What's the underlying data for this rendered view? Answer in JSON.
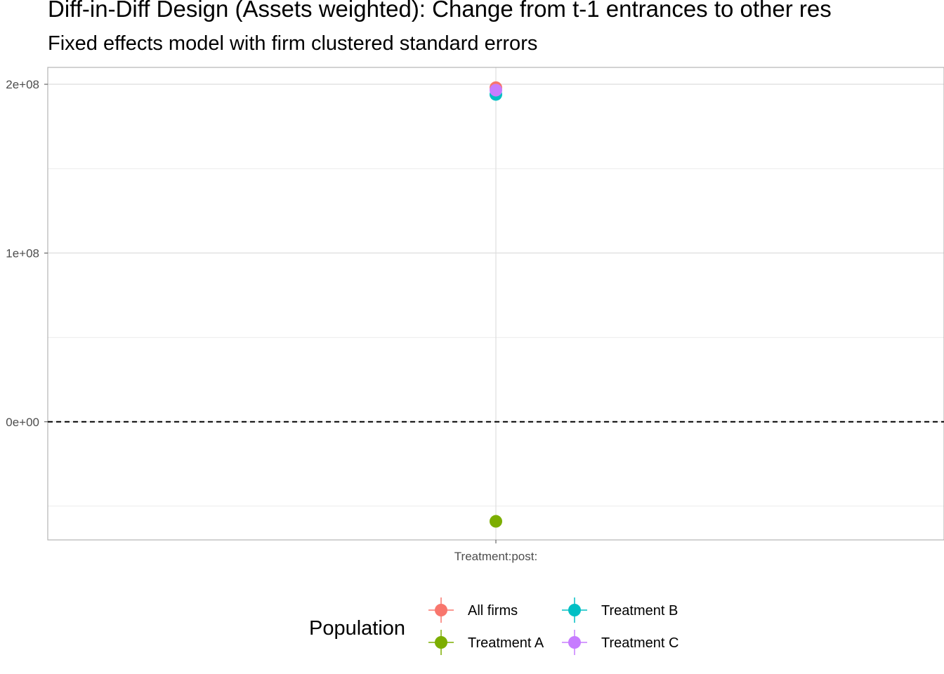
{
  "chart_data": {
    "type": "scatter",
    "title": "Diff-in-Diff Design (Assets weighted): Change from t-1 entrances to other res",
    "subtitle": "Fixed effects model with firm clustered standard errors",
    "xlabel": "",
    "ylabel": "",
    "categories": [
      "Treatment:post:"
    ],
    "ylim": [
      -70000000,
      210000000
    ],
    "yticks": [
      0,
      100000000,
      200000000
    ],
    "ytick_labels": [
      "0e+00",
      "1e+08",
      "2e+08"
    ],
    "reference_line": {
      "y": 0,
      "style": "dashed"
    },
    "grid": true,
    "legend": {
      "title": "Population",
      "position": "bottom"
    },
    "series": [
      {
        "name": "All firms",
        "color": "#F8766D",
        "values": [
          198000000
        ]
      },
      {
        "name": "Treatment A",
        "color": "#7CAE00",
        "values": [
          -59000000
        ]
      },
      {
        "name": "Treatment B",
        "color": "#00BFC4",
        "values": [
          194000000
        ]
      },
      {
        "name": "Treatment C",
        "color": "#C77CFF",
        "values": [
          196500000
        ]
      }
    ]
  }
}
